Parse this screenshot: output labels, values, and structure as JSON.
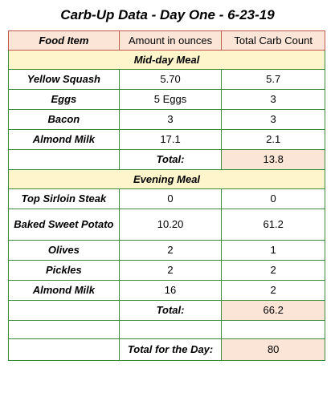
{
  "title": "Carb-Up Data - Day One - 6-23-19",
  "headers": {
    "food": "Food Item",
    "amount": "Amount in ounces",
    "carbs": "Total Carb Count"
  },
  "midday": {
    "heading": "Mid-day Meal",
    "rows": [
      {
        "food": "Yellow Squash",
        "amount": "5.70",
        "carbs": "5.7"
      },
      {
        "food": "Eggs",
        "amount": "5 Eggs",
        "carbs": "3"
      },
      {
        "food": "Bacon",
        "amount": "3",
        "carbs": "3"
      },
      {
        "food": "Almond Milk",
        "amount": "17.1",
        "carbs": "2.1"
      }
    ],
    "total_label": "Total:",
    "total_value": "13.8"
  },
  "evening": {
    "heading": "Evening Meal",
    "rows": [
      {
        "food": "Top Sirloin Steak",
        "amount": "0",
        "carbs": "0"
      },
      {
        "food": "Baked Sweet Potato",
        "amount": "10.20",
        "carbs": "61.2"
      },
      {
        "food": "Olives",
        "amount": "2",
        "carbs": "1"
      },
      {
        "food": "Pickles",
        "amount": "2",
        "carbs": "2"
      },
      {
        "food": "Almond Milk",
        "amount": "16",
        "carbs": "2"
      }
    ],
    "total_label": "Total:",
    "total_value": "66.2"
  },
  "day_total": {
    "label": "Total for the Day:",
    "value": "80"
  },
  "colors": {
    "grid_border": "#3d8a3a",
    "header_border": "#c1584e",
    "header_fill": "#fbe5d6",
    "section_fill": "#fff5cc",
    "total_fill": "#fbe5d6"
  }
}
